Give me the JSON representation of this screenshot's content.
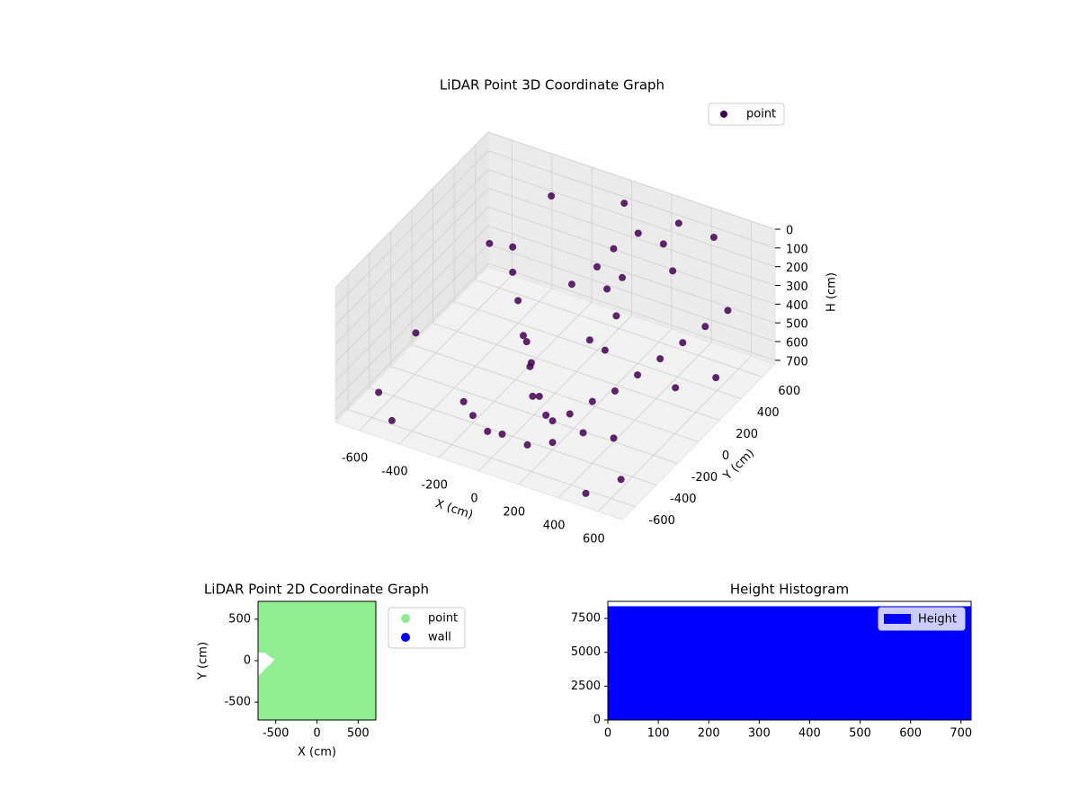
{
  "chart_data": [
    {
      "type": "scatter3d",
      "title": "LiDAR Point 3D Coordinate Graph",
      "xlabel": "X (cm)",
      "ylabel": "Y (cm)",
      "zlabel": "H (cm)",
      "xlim": [
        -720,
        720
      ],
      "ylim": [
        -720,
        720
      ],
      "zlim": [
        0,
        720
      ],
      "z_inverted": true,
      "grid": true,
      "legend": "upper right",
      "xticks": [
        -600,
        -400,
        -200,
        0,
        200,
        400,
        600
      ],
      "yticks": [
        -600,
        -400,
        -200,
        0,
        200,
        400,
        600
      ],
      "zticks": [
        0,
        100,
        200,
        300,
        400,
        500,
        600,
        700
      ],
      "series": [
        {
          "name": "point",
          "color": "#440154",
          "x": [
            -650,
            -560,
            -480,
            -400,
            -320,
            -250,
            -180,
            -120,
            -60,
            0,
            60,
            120,
            180,
            240,
            300,
            360,
            420,
            480,
            540,
            600,
            -300,
            -200,
            -100,
            0,
            100,
            200,
            300,
            400,
            150,
            250,
            350,
            100,
            200,
            -500,
            -620,
            500,
            650,
            700,
            -700,
            300,
            450,
            0,
            -350,
            550,
            250,
            50,
            150,
            -50,
            120,
            80
          ],
          "y": [
            600,
            650,
            500,
            400,
            300,
            200,
            100,
            0,
            -100,
            -150,
            -200,
            -250,
            -200,
            -100,
            0,
            100,
            200,
            300,
            400,
            500,
            -300,
            -400,
            -450,
            -500,
            -450,
            -400,
            -300,
            -200,
            500,
            550,
            450,
            300,
            200,
            -600,
            -500,
            -650,
            -600,
            200,
            0,
            600,
            650,
            650,
            620,
            100,
            0,
            300,
            350,
            250,
            100,
            400
          ],
          "z": [
            500,
            650,
            400,
            600,
            700,
            650,
            700,
            600,
            700,
            650,
            700,
            680,
            650,
            620,
            600,
            550,
            500,
            450,
            400,
            350,
            700,
            680,
            700,
            650,
            700,
            680,
            650,
            700,
            100,
            150,
            200,
            300,
            350,
            700,
            650,
            700,
            600,
            500,
            650,
            50,
            100,
            80,
            150,
            550,
            400,
            200,
            250,
            300,
            450,
            150
          ]
        }
      ]
    },
    {
      "type": "scatter",
      "title": "LiDAR Point 2D Coordinate Graph",
      "xlabel": "X (cm)",
      "ylabel": "Y (cm)",
      "legend": "outside right",
      "xlim": [
        -715,
        715
      ],
      "ylim": [
        -715,
        715
      ],
      "xticks": [
        -500,
        0,
        500
      ],
      "yticks": [
        -500,
        0,
        500
      ],
      "series": [
        {
          "name": "point",
          "color": "#90ee90",
          "x": [
            -650,
            -600,
            -500,
            -400,
            -300,
            -200,
            -100,
            0,
            100,
            200,
            300,
            400,
            500,
            600,
            650,
            -100,
            0,
            100,
            200,
            300,
            400,
            500,
            -500,
            -400,
            -300,
            0,
            200,
            400,
            600,
            -650,
            -200,
            100,
            300,
            500,
            -50,
            250,
            450,
            150
          ],
          "y": [
            -500,
            -600,
            -400,
            -300,
            -200,
            -100,
            0,
            100,
            200,
            300,
            400,
            500,
            600,
            500,
            300,
            -400,
            -500,
            -600,
            -650,
            -500,
            -300,
            -100,
            500,
            300,
            -500,
            650,
            600,
            -600,
            -400,
            400,
            450,
            450,
            200,
            100,
            300,
            -200,
            -600,
            0
          ]
        },
        {
          "name": "wall",
          "color": "#0000ff",
          "x": [],
          "y": []
        }
      ]
    },
    {
      "type": "histogram",
      "title": "Height Histogram",
      "legend": "upper right",
      "xlim": [
        0,
        720
      ],
      "ylim": [
        0,
        8760
      ],
      "xticks": [
        0,
        100,
        200,
        300,
        400,
        500,
        600,
        700
      ],
      "yticks": [
        0,
        2500,
        5000,
        7500
      ],
      "series": [
        {
          "name": "Height",
          "color": "#0000ff",
          "bins": [
            0,
            720
          ],
          "counts": [
            8400
          ]
        }
      ]
    }
  ]
}
